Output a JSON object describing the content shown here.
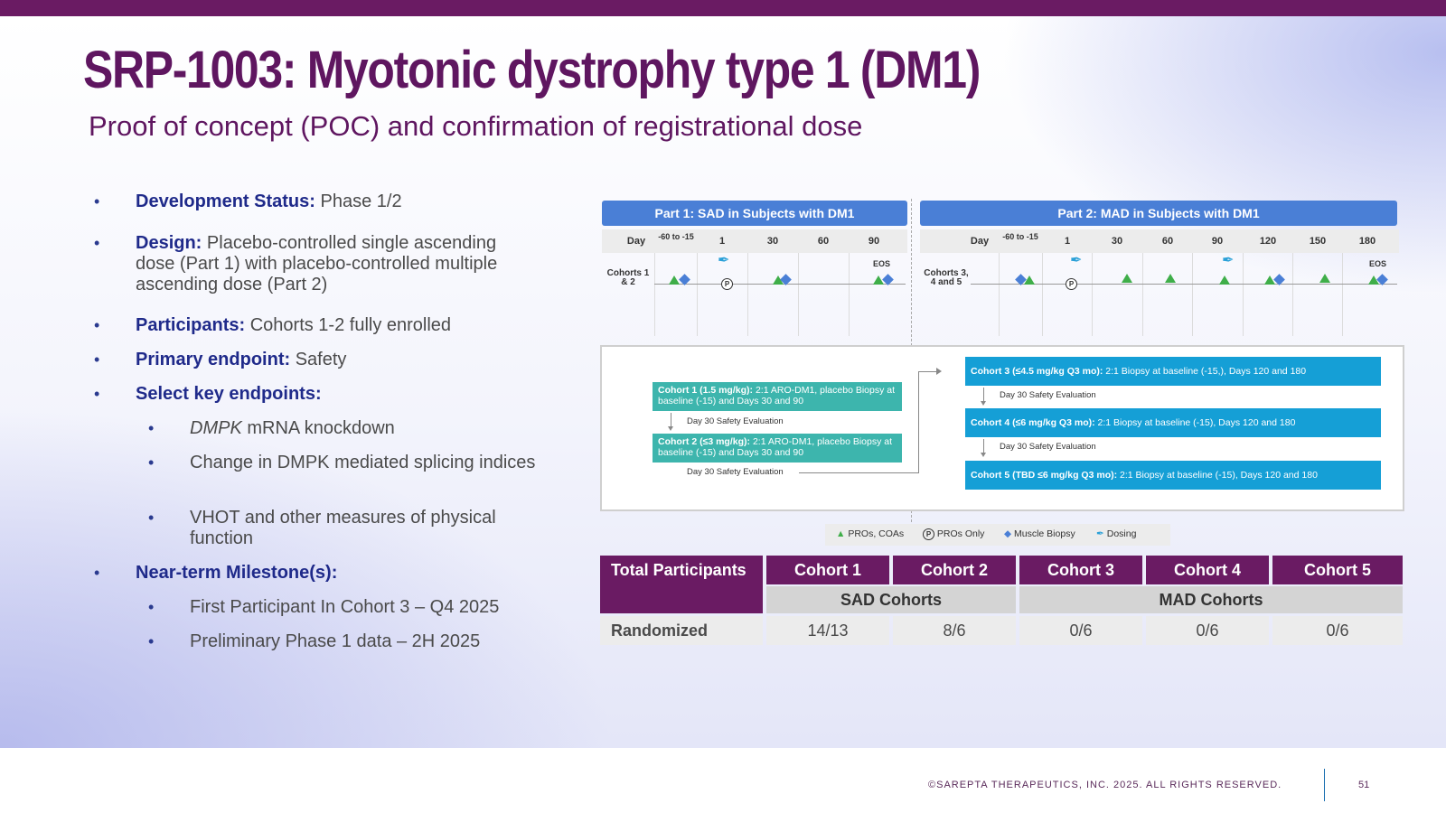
{
  "slide": {
    "title": "SRP-1003: Myotonic dystrophy type 1 (DM1)",
    "subtitle": "Proof of concept (POC) and confirmation of registrational dose"
  },
  "bullets": {
    "dev_status_label": "Development Status:",
    "dev_status_value": "Phase 1/2",
    "design_label": "Design:",
    "design_value": "Placebo-controlled single ascending dose (Part 1) with placebo-controlled multiple ascending dose (Part 2)",
    "participants_label": "Participants:",
    "participants_value": "Cohorts 1-2 fully enrolled",
    "primary_label": "Primary endpoint:",
    "primary_value": "Safety",
    "key_endpoints_label": "Select key endpoints:",
    "key_endpoint_1_ital": "DMPK",
    "key_endpoint_1_rest": "mRNA knockdown",
    "key_endpoint_2": "Change in DMPK  mediated splicing indices",
    "key_endpoint_3": "VHOT and other measures of physical function",
    "milestones_label": "Near-term Milestone(s):",
    "milestone_1": "First Participant In Cohort 3 – Q4 2025",
    "milestone_2": "Preliminary Phase 1 data – 2H 2025"
  },
  "diagram": {
    "part1_header": "Part 1: SAD in Subjects with DM1",
    "part2_header": "Part 2: MAD in Subjects with DM1",
    "day_label": "Day",
    "part1_days": [
      "-60 to -15",
      "1",
      "30",
      "60",
      "90"
    ],
    "part2_days": [
      "-60 to -15",
      "1",
      "30",
      "60",
      "90",
      "120",
      "150",
      "180"
    ],
    "part1_cohorts": "Cohorts 1 & 2",
    "part2_cohorts": "Cohorts 3, 4 and 5",
    "eos": "EOS",
    "p_marker": "P",
    "cohort1_bold": "Cohort 1 (1.5 mg/kg):",
    "cohort1_text": "2:1 ARO-DM1, placebo Biopsy at baseline (-15) and Days 30 and 90",
    "cohort2_bold": "Cohort 2 (≤3 mg/kg):",
    "cohort2_text": "2:1 ARO-DM1, placebo Biopsy at baseline (-15) and Days 30 and 90",
    "cohort3_bold": "Cohort 3 (≤4.5 mg/kg Q3 mo):",
    "cohort3_text": "2:1 Biopsy at baseline (-15,), Days 120 and 180",
    "cohort4_bold": "Cohort 4 (≤6 mg/kg Q3 mo):",
    "cohort4_text": "2:1 Biopsy at baseline (-15), Days 120 and 180",
    "cohort5_bold": "Cohort 5 (TBD ≤6 mg/kg Q3 mo):",
    "cohort5_text": "2:1 Biopsy at baseline (-15), Days 120 and 180",
    "safety_eval": "Day 30 Safety Evaluation",
    "legend": {
      "pros_coas": "PROs, COAs",
      "pros_only": "PROs Only",
      "biopsy": "Muscle Biopsy",
      "dosing": "Dosing"
    },
    "colors": {
      "triangle": "#3fae49",
      "diamond": "#4a7fd6",
      "teal_box": "#3db5ad",
      "blue_box": "#159fd6"
    }
  },
  "table": {
    "header_first": "Total Participants",
    "cohorts": [
      "Cohort 1",
      "Cohort 2",
      "Cohort 3",
      "Cohort 4",
      "Cohort 5"
    ],
    "sad_label": "SAD Cohorts",
    "mad_label": "MAD Cohorts",
    "row_label": "Randomized",
    "values": [
      "14/13",
      "8/6",
      "0/6",
      "0/6",
      "0/6"
    ]
  },
  "footer": {
    "copyright": "©SAREPTA THERAPEUTICS, INC. 2025.  ALL RIGHTS RESERVED.",
    "page": "51"
  }
}
